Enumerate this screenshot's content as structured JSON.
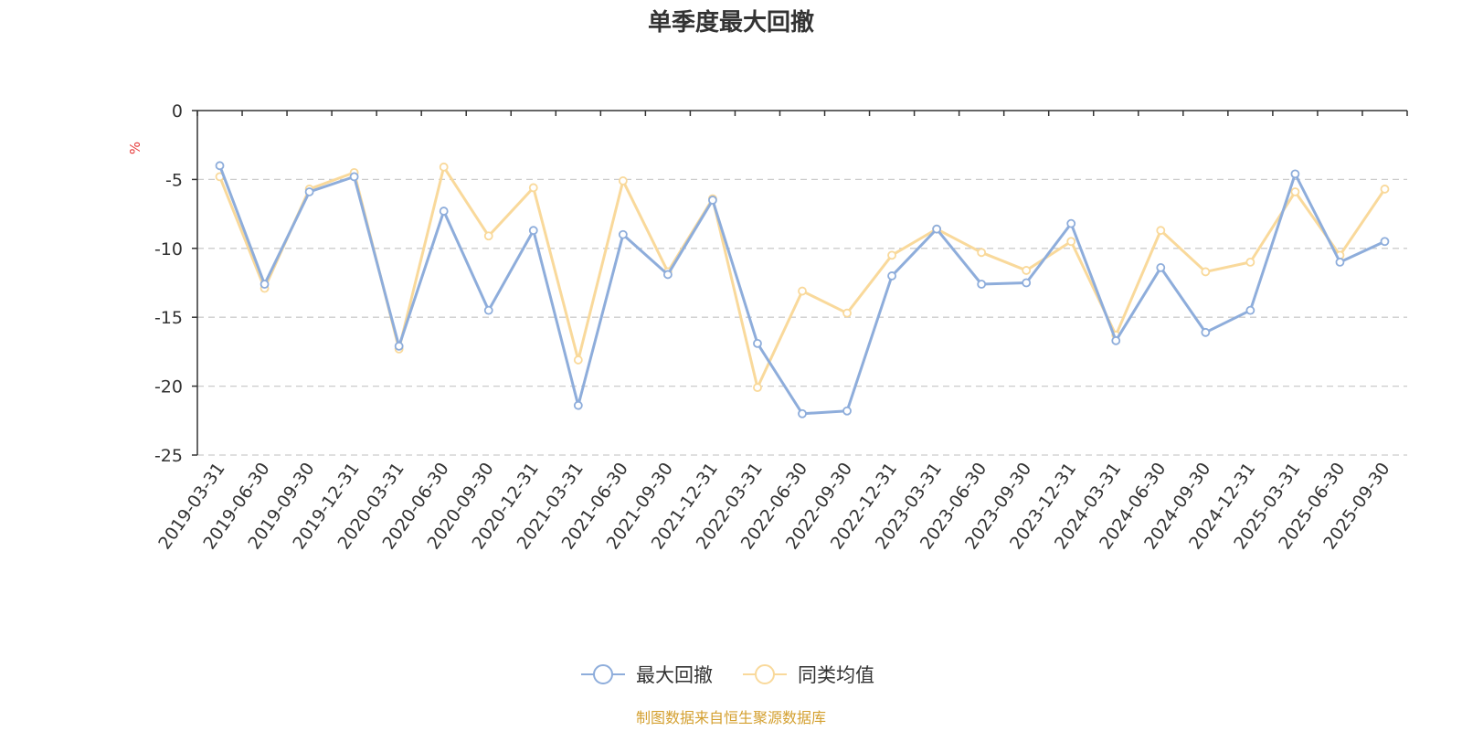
{
  "chart_data": {
    "type": "line",
    "title": "单季度最大回撤",
    "ylabel": "%",
    "ylim": [
      -25,
      0
    ],
    "yticks": [
      0,
      -5,
      -10,
      -15,
      -20,
      -25
    ],
    "ytick_labels": [
      "0",
      "-5",
      "-10",
      "-15",
      "-20",
      "-25"
    ],
    "grid": true,
    "legend_position": "bottom-center",
    "categories": [
      "2019-03-31",
      "2019-06-30",
      "2019-09-30",
      "2019-12-31",
      "2020-03-31",
      "2020-06-30",
      "2020-09-30",
      "2020-12-31",
      "2021-03-31",
      "2021-06-30",
      "2021-09-30",
      "2021-12-31",
      "2022-03-31",
      "2022-06-30",
      "2022-09-30",
      "2022-12-31",
      "2023-03-31",
      "2023-06-30",
      "2023-09-30",
      "2023-12-31",
      "2024-03-31",
      "2024-06-30",
      "2024-09-30",
      "2024-12-31",
      "2025-03-31",
      "2025-06-30",
      "2025-09-30"
    ],
    "series": [
      {
        "name": "最大回撤",
        "color": "#8eaddb",
        "values": [
          -4.0,
          -12.6,
          -5.9,
          -4.8,
          -17.1,
          -7.3,
          -14.5,
          -8.7,
          -21.4,
          -9.0,
          -11.9,
          -6.5,
          -16.9,
          -22.0,
          -21.8,
          -12.0,
          -8.6,
          -12.6,
          -12.5,
          -8.2,
          -16.7,
          -11.4,
          -16.1,
          -14.5,
          -4.6,
          -11.0,
          -9.5
        ]
      },
      {
        "name": "同类均值",
        "color": "#f9d99b",
        "values": [
          -4.8,
          -12.9,
          -5.7,
          -4.5,
          -17.3,
          -4.1,
          -9.1,
          -5.6,
          -18.1,
          -5.1,
          -11.7,
          -6.4,
          -20.1,
          -13.1,
          -14.7,
          -10.5,
          -8.6,
          -10.3,
          -11.6,
          -9.5,
          -16.3,
          -8.7,
          -11.7,
          -11.0,
          -5.9,
          -10.5,
          -5.7
        ]
      }
    ],
    "source": "制图数据来自恒生聚源数据库"
  },
  "colors": {
    "title": "#333333",
    "axis": "#333333",
    "grid": "#cccccc",
    "unit": "#e63a3a",
    "source": "#d4a030"
  }
}
